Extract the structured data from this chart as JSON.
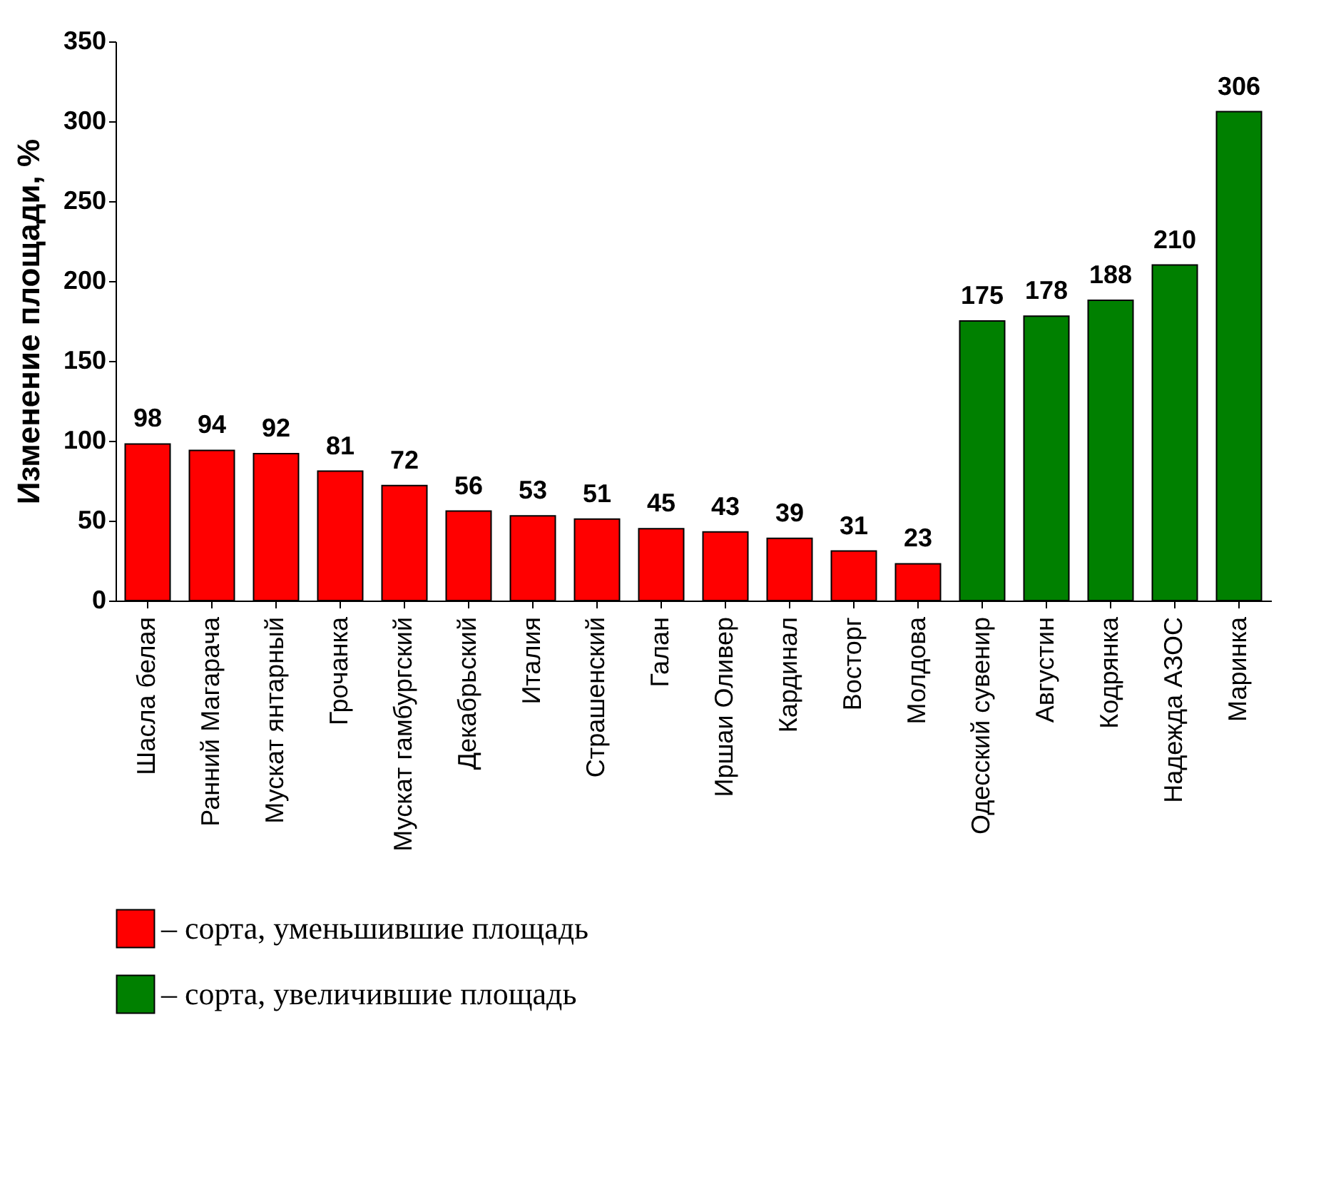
{
  "chart_data": {
    "type": "bar",
    "ylabel": "Изменение площади, %",
    "categories": [
      "Шасла белая",
      "Ранний Магарача",
      "Мускат янтарный",
      "Грочанка",
      "Мускат гамбургский",
      "Декабрьский",
      "Италия",
      "Страшенский",
      "Галан",
      "Иршаи Оливер",
      "Кардинал",
      "Восторг",
      "Молдова",
      "Одесский сувенир",
      "Августин",
      "Кодрянка",
      "Надежда АЗОС",
      "Маринка"
    ],
    "series": [
      {
        "name": "– сорта, уменьшившие площадь",
        "color": "#ff0000",
        "values": [
          98,
          94,
          92,
          81,
          72,
          56,
          53,
          51,
          45,
          43,
          39,
          31,
          23,
          null,
          null,
          null,
          null,
          null
        ]
      },
      {
        "name": "– сорта, увеличившие площадь",
        "color": "#008000",
        "values": [
          null,
          null,
          null,
          null,
          null,
          null,
          null,
          null,
          null,
          null,
          null,
          null,
          null,
          175,
          178,
          188,
          210,
          306
        ]
      }
    ],
    "ylim": [
      0,
      350
    ],
    "yticks": [
      0,
      50,
      100,
      150,
      200,
      250,
      300,
      350
    ],
    "data_labels": true,
    "legend": "bottom"
  }
}
